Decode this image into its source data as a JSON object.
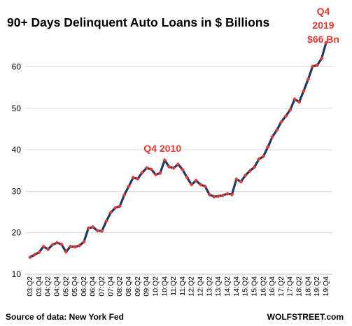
{
  "chart_data": {
    "type": "line",
    "title": "90+ Days Delinquent Auto Loans in $ Billions",
    "xlabel": "",
    "ylabel": "",
    "ylim": [
      10,
      68
    ],
    "yticks": [
      10,
      20,
      30,
      40,
      50,
      60
    ],
    "grid": "horizontal",
    "line_color": "#1f3a5c",
    "marker_color": "#e53935",
    "x": [
      "03:Q2",
      "03:Q3",
      "03:Q4",
      "04:Q1",
      "04:Q2",
      "04:Q3",
      "04:Q4",
      "05:Q1",
      "05:Q2",
      "05:Q3",
      "05:Q4",
      "06:Q1",
      "06:Q2",
      "06:Q3",
      "06:Q4",
      "07:Q1",
      "07:Q2",
      "07:Q3",
      "07:Q4",
      "08:Q1",
      "08:Q2",
      "08:Q3",
      "08:Q4",
      "09:Q1",
      "09:Q2",
      "09:Q3",
      "09:Q4",
      "10:Q1",
      "10:Q2",
      "10:Q3",
      "10:Q4",
      "11:Q1",
      "11:Q2",
      "11:Q3",
      "11:Q4",
      "12:Q1",
      "12:Q2",
      "12:Q3",
      "12:Q4",
      "13:Q1",
      "13:Q2",
      "13:Q3",
      "13:Q4",
      "14:Q1",
      "14:Q2",
      "14:Q3",
      "14:Q4",
      "15:Q1",
      "15:Q2",
      "15:Q3",
      "15:Q4",
      "16:Q1",
      "16:Q2",
      "16:Q3",
      "16:Q4",
      "17:Q1",
      "17:Q2",
      "17:Q3",
      "17:Q4",
      "18:Q1",
      "18:Q2",
      "18:Q3",
      "18:Q4",
      "19:Q1",
      "19:Q2",
      "19:Q3",
      "19:Q4"
    ],
    "x_tick_labels": [
      "03:Q2",
      "03:Q4",
      "04:Q2",
      "04:Q4",
      "05:Q2",
      "05:Q4",
      "06:Q2",
      "06:Q4",
      "07:Q2",
      "07:Q4",
      "08:Q2",
      "08:Q4",
      "09:Q2",
      "09:Q4",
      "10:Q2",
      "10:Q4",
      "11:Q2",
      "11:Q4",
      "12:Q2",
      "12:Q4",
      "13:Q2",
      "13:Q4",
      "14:Q2",
      "14:Q4",
      "15:Q2",
      "15:Q4",
      "16:Q2",
      "16:Q4",
      "17:Q2",
      "17:Q4",
      "18:Q2",
      "18:Q4",
      "19:Q2",
      "19:Q4"
    ],
    "values": [
      14.1,
      14.7,
      15.3,
      16.7,
      16.0,
      17.1,
      17.6,
      17.2,
      15.4,
      16.7,
      16.6,
      16.9,
      17.8,
      21.1,
      21.4,
      20.5,
      20.4,
      22.8,
      24.9,
      26.0,
      26.4,
      29.1,
      31.2,
      33.3,
      33.0,
      34.5,
      35.6,
      35.3,
      34.0,
      34.4,
      37.5,
      35.9,
      35.6,
      36.5,
      35.2,
      33.3,
      31.6,
      32.6,
      31.6,
      31.2,
      29.2,
      28.7,
      28.8,
      29.0,
      29.4,
      29.2,
      32.9,
      32.3,
      33.8,
      34.9,
      35.8,
      37.7,
      38.4,
      40.6,
      43.1,
      44.7,
      46.7,
      48.1,
      49.6,
      52.2,
      51.5,
      54.2,
      57.0,
      60.1,
      60.4,
      62.0,
      65.8
    ],
    "annotations": [
      {
        "text": "Q4 2010",
        "x": "10:Q4",
        "y": 37.5
      },
      {
        "lines": [
          "Q4",
          "2019",
          "$66 Bn"
        ],
        "x": "19:Q4",
        "y": 65.8
      }
    ]
  },
  "footer": {
    "source": "Source of data: New York Fed",
    "brand": "WOLFSTREET.com"
  }
}
